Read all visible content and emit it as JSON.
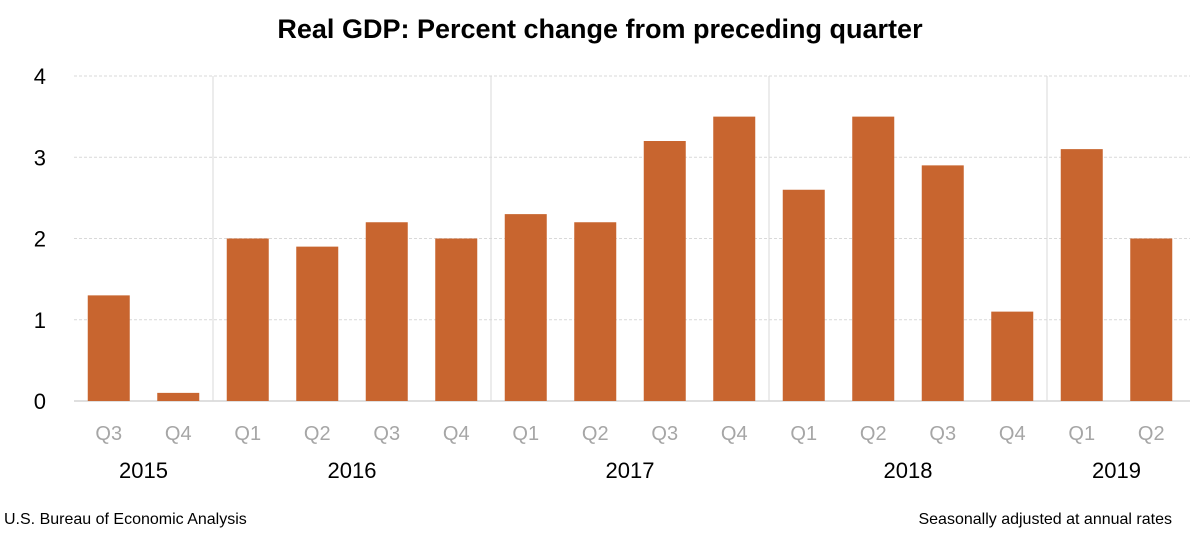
{
  "source": "U.S. Bureau of Economic Analysis",
  "note": "Seasonally adjusted at annual rates",
  "colors": {
    "bar": "#C8652F",
    "grid": "#D9D9D9",
    "tick_label": "#A6A6A6",
    "axis_label": "#000000"
  },
  "chart_data": {
    "type": "bar",
    "title": "Real GDP:  Percent change from preceding quarter",
    "xlabel": "",
    "ylabel": "",
    "ylim": [
      0,
      4
    ],
    "yticks": [
      0,
      1,
      2,
      3,
      4
    ],
    "grid": true,
    "categories": [
      "Q3",
      "Q4",
      "Q1",
      "Q2",
      "Q3",
      "Q4",
      "Q1",
      "Q2",
      "Q3",
      "Q4",
      "Q1",
      "Q2",
      "Q3",
      "Q4",
      "Q1",
      "Q2"
    ],
    "years": [
      {
        "label": "2015",
        "count": 2
      },
      {
        "label": "2016",
        "count": 4
      },
      {
        "label": "2017",
        "count": 4
      },
      {
        "label": "2018",
        "count": 4
      },
      {
        "label": "2019",
        "count": 2
      }
    ],
    "values": [
      1.3,
      0.1,
      2.0,
      1.9,
      2.2,
      2.0,
      2.3,
      2.2,
      3.2,
      3.5,
      2.6,
      3.5,
      2.9,
      1.1,
      3.1,
      2.0
    ]
  }
}
